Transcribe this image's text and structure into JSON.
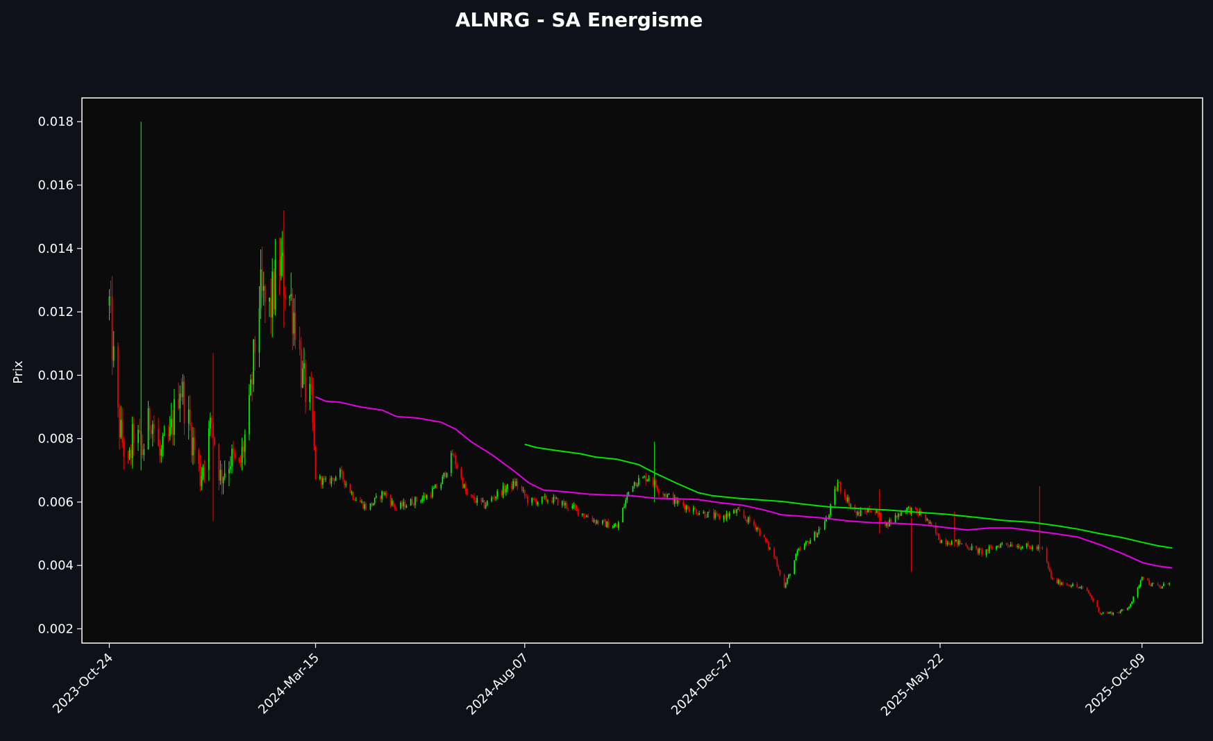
{
  "chart_data": {
    "type": "candlestick",
    "title": "ALNRG - SA Energisme",
    "xlabel": "",
    "ylabel": "Prix",
    "x_range": [
      "2023-10-05",
      "2025-11-20"
    ],
    "ylim": [
      0.00155,
      0.01875
    ],
    "y_ticks": [
      0.002,
      0.004,
      0.006,
      0.008,
      0.01,
      0.012,
      0.014,
      0.016,
      0.018
    ],
    "x_ticks": [
      {
        "date": "2023-10-24",
        "label": "2023-Oct-24"
      },
      {
        "date": "2024-03-15",
        "label": "2024-Mar-15"
      },
      {
        "date": "2024-08-07",
        "label": "2024-Aug-07"
      },
      {
        "date": "2024-12-27",
        "label": "2024-Dec-27"
      },
      {
        "date": "2025-05-22",
        "label": "2025-May-22"
      },
      {
        "date": "2025-10-09",
        "label": "2025-Oct-09"
      }
    ],
    "grid": false,
    "colors": {
      "background": "#0e111a",
      "plot_background": "#0b0b0b",
      "axes": "#ffffff",
      "up": "#00ff00",
      "down": "#ff0000",
      "ma_short": "#e600e6",
      "ma_long": "#00e600"
    },
    "close_trend": [
      [
        "2023-10-24",
        0.0122
      ],
      [
        "2023-10-30",
        0.0086
      ],
      [
        "2023-11-06",
        0.007
      ],
      [
        "2023-11-10",
        0.0082
      ],
      [
        "2023-11-16",
        0.0076
      ],
      [
        "2023-11-22",
        0.0088
      ],
      [
        "2023-11-28",
        0.0074
      ],
      [
        "2023-12-05",
        0.008
      ],
      [
        "2023-12-12",
        0.0098
      ],
      [
        "2023-12-18",
        0.0085
      ],
      [
        "2023-12-26",
        0.0068
      ],
      [
        "2024-01-03",
        0.0085
      ],
      [
        "2024-01-09",
        0.0068
      ],
      [
        "2024-01-16",
        0.0074
      ],
      [
        "2024-01-22",
        0.007
      ],
      [
        "2024-01-29",
        0.0088
      ],
      [
        "2024-02-05",
        0.0125
      ],
      [
        "2024-02-12",
        0.012
      ],
      [
        "2024-02-19",
        0.0135
      ],
      [
        "2024-02-26",
        0.0125
      ],
      [
        "2024-03-01",
        0.0118
      ],
      [
        "2024-03-06",
        0.0098
      ],
      [
        "2024-03-12",
        0.009
      ],
      [
        "2024-03-15",
        0.0068
      ],
      [
        "2024-03-22",
        0.0066
      ],
      [
        "2024-04-01",
        0.0069
      ],
      [
        "2024-04-10",
        0.0062
      ],
      [
        "2024-04-20",
        0.0058
      ],
      [
        "2024-05-01",
        0.0063
      ],
      [
        "2024-05-10",
        0.0058
      ],
      [
        "2024-05-20",
        0.006
      ],
      [
        "2024-06-01",
        0.0062
      ],
      [
        "2024-06-10",
        0.0066
      ],
      [
        "2024-06-18",
        0.0075
      ],
      [
        "2024-06-28",
        0.0062
      ],
      [
        "2024-07-10",
        0.0059
      ],
      [
        "2024-07-20",
        0.0063
      ],
      [
        "2024-08-01",
        0.0066
      ],
      [
        "2024-08-10",
        0.006
      ],
      [
        "2024-08-25",
        0.0061
      ],
      [
        "2024-09-10",
        0.0058
      ],
      [
        "2024-09-25",
        0.0054
      ],
      [
        "2024-10-10",
        0.0052
      ],
      [
        "2024-10-20",
        0.0066
      ],
      [
        "2024-11-01",
        0.0068
      ],
      [
        "2024-11-08",
        0.0064
      ],
      [
        "2024-11-20",
        0.006
      ],
      [
        "2024-12-05",
        0.0057
      ],
      [
        "2024-12-20",
        0.0055
      ],
      [
        "2025-01-01",
        0.0057
      ],
      [
        "2025-01-15",
        0.0052
      ],
      [
        "2025-01-28",
        0.0042
      ],
      [
        "2025-02-03",
        0.0033
      ],
      [
        "2025-02-12",
        0.0044
      ],
      [
        "2025-02-25",
        0.005
      ],
      [
        "2025-03-05",
        0.0055
      ],
      [
        "2025-03-12",
        0.0066
      ],
      [
        "2025-03-25",
        0.0056
      ],
      [
        "2025-04-05",
        0.0058
      ],
      [
        "2025-04-15",
        0.0053
      ],
      [
        "2025-04-28",
        0.0058
      ],
      [
        "2025-05-10",
        0.0056
      ],
      [
        "2025-05-22",
        0.0048
      ],
      [
        "2025-06-05",
        0.0047
      ],
      [
        "2025-06-20",
        0.0044
      ],
      [
        "2025-07-05",
        0.0047
      ],
      [
        "2025-07-20",
        0.0046
      ],
      [
        "2025-08-01",
        0.0045
      ],
      [
        "2025-08-08",
        0.0035
      ],
      [
        "2025-08-20",
        0.0034
      ],
      [
        "2025-09-01",
        0.0032
      ],
      [
        "2025-09-10",
        0.0025
      ],
      [
        "2025-09-20",
        0.0025
      ],
      [
        "2025-09-28",
        0.0026
      ],
      [
        "2025-10-05",
        0.0031
      ],
      [
        "2025-10-09",
        0.0037
      ],
      [
        "2025-10-15",
        0.0034
      ],
      [
        "2025-10-22",
        0.0033
      ],
      [
        "2025-10-28",
        0.0035
      ]
    ],
    "spikes": [
      {
        "date": "2023-11-15",
        "high": 0.018,
        "low": 0.007
      },
      {
        "date": "2024-02-22",
        "high": 0.0152,
        "low": 0.0115
      },
      {
        "date": "2024-01-04",
        "high": 0.0107,
        "low": 0.0054
      },
      {
        "date": "2024-11-05",
        "high": 0.0079,
        "low": 0.006
      },
      {
        "date": "2025-04-10",
        "high": 0.0064,
        "low": 0.005
      },
      {
        "date": "2025-05-02",
        "high": 0.0055,
        "low": 0.0038
      },
      {
        "date": "2025-07-30",
        "high": 0.0065,
        "low": 0.0044
      },
      {
        "date": "2025-06-01",
        "high": 0.0057,
        "low": 0.0046
      }
    ],
    "series": [
      {
        "type": "line",
        "color": "#e600e6",
        "points": [
          [
            "2024-03-15",
            0.00932
          ],
          [
            "2024-03-22",
            0.00918
          ],
          [
            "2024-04-01",
            0.00915
          ],
          [
            "2024-04-15",
            0.009
          ],
          [
            "2024-04-30",
            0.0089
          ],
          [
            "2024-05-10",
            0.0087
          ],
          [
            "2024-05-25",
            0.00865
          ],
          [
            "2024-06-10",
            0.00852
          ],
          [
            "2024-06-20",
            0.0083
          ],
          [
            "2024-07-01",
            0.0079
          ],
          [
            "2024-07-15",
            0.0075
          ],
          [
            "2024-07-30",
            0.007
          ],
          [
            "2024-08-10",
            0.0066
          ],
          [
            "2024-08-20",
            0.00638
          ],
          [
            "2024-09-05",
            0.00632
          ],
          [
            "2024-09-20",
            0.00625
          ],
          [
            "2024-10-05",
            0.00622
          ],
          [
            "2024-10-20",
            0.0062
          ],
          [
            "2024-11-05",
            0.00612
          ],
          [
            "2024-11-20",
            0.0061
          ],
          [
            "2024-12-05",
            0.00608
          ],
          [
            "2024-12-20",
            0.00598
          ],
          [
            "2025-01-05",
            0.0059
          ],
          [
            "2025-01-20",
            0.00575
          ],
          [
            "2025-02-01",
            0.0056
          ],
          [
            "2025-02-15",
            0.00555
          ],
          [
            "2025-03-01",
            0.0055
          ],
          [
            "2025-03-20",
            0.0054
          ],
          [
            "2025-04-05",
            0.00535
          ],
          [
            "2025-04-25",
            0.00532
          ],
          [
            "2025-05-10",
            0.00528
          ],
          [
            "2025-05-25",
            0.0052
          ],
          [
            "2025-06-10",
            0.00512
          ],
          [
            "2025-06-25",
            0.00518
          ],
          [
            "2025-07-10",
            0.00518
          ],
          [
            "2025-07-25",
            0.0051
          ],
          [
            "2025-08-10",
            0.005
          ],
          [
            "2025-08-25",
            0.0049
          ],
          [
            "2025-09-10",
            0.00465
          ],
          [
            "2025-09-25",
            0.00438
          ],
          [
            "2025-10-10",
            0.00408
          ],
          [
            "2025-10-20",
            0.00398
          ],
          [
            "2025-10-30",
            0.00392
          ]
        ]
      },
      {
        "type": "line",
        "color": "#00e600",
        "points": [
          [
            "2024-08-07",
            0.00782
          ],
          [
            "2024-08-15",
            0.00772
          ],
          [
            "2024-08-30",
            0.00762
          ],
          [
            "2024-09-15",
            0.00752
          ],
          [
            "2024-09-25",
            0.00742
          ],
          [
            "2024-10-10",
            0.00735
          ],
          [
            "2024-10-25",
            0.00718
          ],
          [
            "2024-11-05",
            0.00692
          ],
          [
            "2024-11-20",
            0.0066
          ],
          [
            "2024-12-05",
            0.0063
          ],
          [
            "2024-12-15",
            0.0062
          ],
          [
            "2025-01-01",
            0.00612
          ],
          [
            "2025-01-20",
            0.00606
          ],
          [
            "2025-02-01",
            0.00602
          ],
          [
            "2025-02-15",
            0.00594
          ],
          [
            "2025-03-05",
            0.00585
          ],
          [
            "2025-03-25",
            0.0058
          ],
          [
            "2025-04-15",
            0.00575
          ],
          [
            "2025-05-05",
            0.00568
          ],
          [
            "2025-05-25",
            0.00562
          ],
          [
            "2025-06-15",
            0.00552
          ],
          [
            "2025-07-05",
            0.00542
          ],
          [
            "2025-07-25",
            0.00536
          ],
          [
            "2025-08-10",
            0.00526
          ],
          [
            "2025-08-25",
            0.00515
          ],
          [
            "2025-09-10",
            0.005
          ],
          [
            "2025-09-25",
            0.00488
          ],
          [
            "2025-10-10",
            0.00472
          ],
          [
            "2025-10-20",
            0.00462
          ],
          [
            "2025-10-30",
            0.00455
          ]
        ]
      }
    ]
  }
}
